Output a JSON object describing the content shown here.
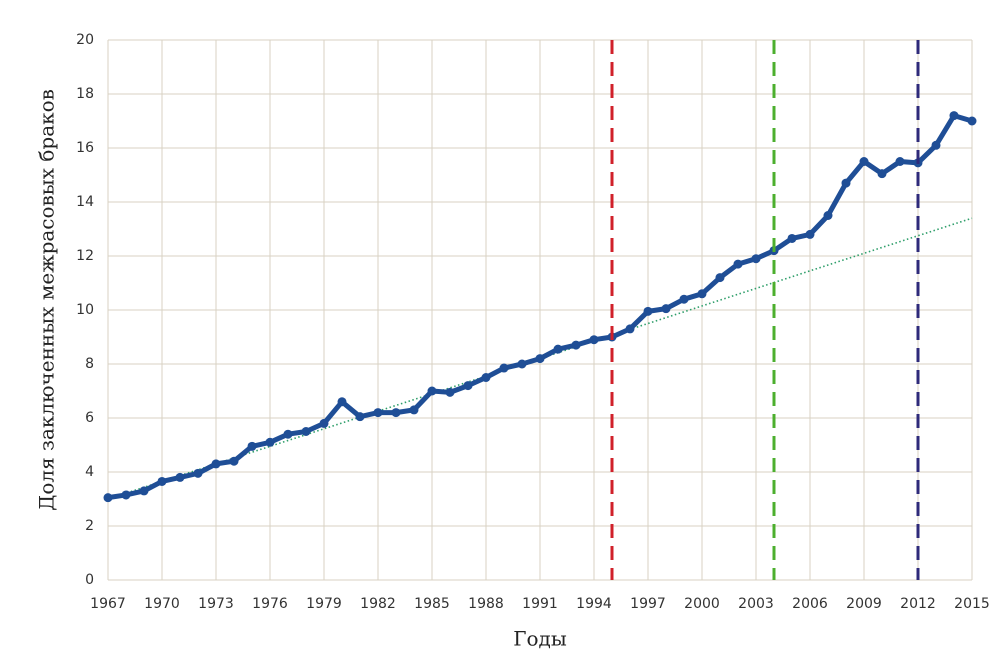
{
  "chart_data": {
    "type": "line",
    "x_label": "Годы",
    "y_label": "Доля заключенных межрасовых браков",
    "x": [
      1967,
      1968,
      1969,
      1970,
      1971,
      1972,
      1973,
      1974,
      1975,
      1976,
      1977,
      1978,
      1979,
      1980,
      1981,
      1982,
      1983,
      1984,
      1985,
      1986,
      1987,
      1988,
      1989,
      1990,
      1991,
      1992,
      1993,
      1994,
      1995,
      1996,
      1997,
      1998,
      1999,
      2000,
      2001,
      2002,
      2003,
      2004,
      2005,
      2006,
      2007,
      2008,
      2009,
      2010,
      2011,
      2012,
      2013,
      2014,
      2015
    ],
    "values": [
      3.05,
      3.15,
      3.3,
      3.65,
      3.8,
      3.95,
      4.3,
      4.4,
      4.95,
      5.1,
      5.4,
      5.5,
      5.8,
      6.6,
      6.05,
      6.2,
      6.2,
      6.3,
      7.0,
      6.95,
      7.2,
      7.5,
      7.85,
      8.0,
      8.2,
      8.55,
      8.7,
      8.9,
      9.0,
      9.3,
      9.95,
      10.05,
      10.4,
      10.6,
      11.2,
      11.7,
      11.9,
      12.2,
      12.65,
      12.8,
      13.5,
      14.7,
      15.5,
      15.05,
      15.5,
      15.45,
      16.1,
      17.2,
      17.0
    ],
    "color": "#1f4e96",
    "trendline": {
      "x": [
        1967,
        2015
      ],
      "values": [
        3.0,
        13.4
      ],
      "color": "#2e9e6a"
    },
    "vlines": [
      {
        "x": 1995,
        "color": "#d0202a"
      },
      {
        "x": 2004,
        "color": "#4caf2e"
      },
      {
        "x": 2012,
        "color": "#2e2a7a"
      }
    ],
    "xlim": [
      1967,
      2015
    ],
    "xticks": [
      1967,
      1970,
      1973,
      1976,
      1979,
      1982,
      1985,
      1988,
      1991,
      1994,
      1997,
      2000,
      2003,
      2006,
      2009,
      2012,
      2015
    ],
    "ylim": [
      0,
      20
    ],
    "yticks": [
      0,
      2,
      4,
      6,
      8,
      10,
      12,
      14,
      16,
      18,
      20
    ],
    "grid": true
  }
}
